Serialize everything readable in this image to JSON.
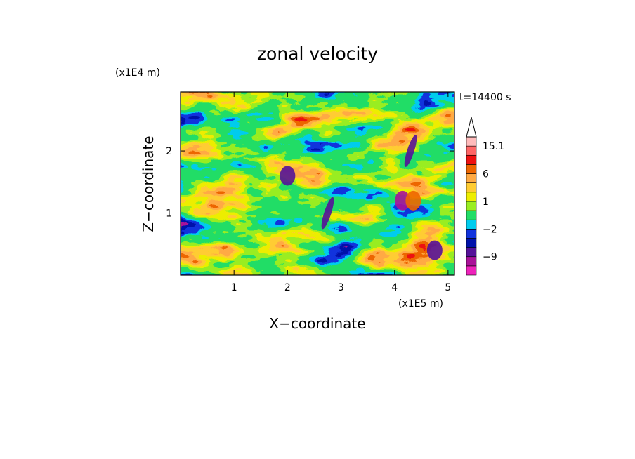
{
  "chart_data": {
    "type": "heatmap",
    "title": "zonal velocity",
    "xlabel": "X−coordinate",
    "ylabel": "Z−coordinate",
    "x_scale_label": "(x1E5 m)",
    "y_scale_label": "(x1E4 m)",
    "time_label": "t=14400 s",
    "xlim": [
      0,
      5.12
    ],
    "ylim": [
      0,
      2.95
    ],
    "x_ticks": [
      1,
      2,
      3,
      4,
      5
    ],
    "x_tick_labels": [
      "1",
      "2",
      "3",
      "4",
      "5"
    ],
    "y_ticks": [
      1,
      2
    ],
    "y_tick_labels": [
      "1",
      "2"
    ],
    "colorbar": {
      "levels": [
        -15,
        -12,
        -9,
        -6,
        -3,
        -2,
        -1,
        0,
        1,
        2,
        3,
        6,
        9,
        12,
        15.1
      ],
      "tick_labels": [
        {
          "value": 15.1,
          "label": "15.1"
        },
        {
          "value": 6,
          "label": "6"
        },
        {
          "value": 1,
          "label": "1"
        },
        {
          "value": -2,
          "label": "−2"
        },
        {
          "value": -9,
          "label": "−9"
        }
      ],
      "colors": [
        "#ee22bb",
        "#aa1199",
        "#551199",
        "#0011aa",
        "#1133dd",
        "#00ccee",
        "#22dd66",
        "#99ee22",
        "#eeee00",
        "#ffcc33",
        "#ffaa44",
        "#ee6600",
        "#ee1111",
        "#ff6666",
        "#ffbbbb"
      ],
      "extend_max_color": "#ffffff"
    },
    "field_features": [
      {
        "kind": "negative-core",
        "x": 4.15,
        "z": 1.2,
        "value": -9
      },
      {
        "kind": "negative-streak",
        "x": 2.75,
        "z": 1.0,
        "value": -6
      },
      {
        "kind": "negative-streak",
        "x": 4.3,
        "z": 2.0,
        "value": -6
      },
      {
        "kind": "positive-core",
        "x": 4.35,
        "z": 1.2,
        "value": 9
      },
      {
        "kind": "negative-patch",
        "x": 2.0,
        "z": 1.6,
        "value": -6
      },
      {
        "kind": "negative-patch",
        "x": 4.75,
        "z": 0.4,
        "value": -6
      }
    ],
    "grid": false,
    "legend": "colorbar-right"
  }
}
